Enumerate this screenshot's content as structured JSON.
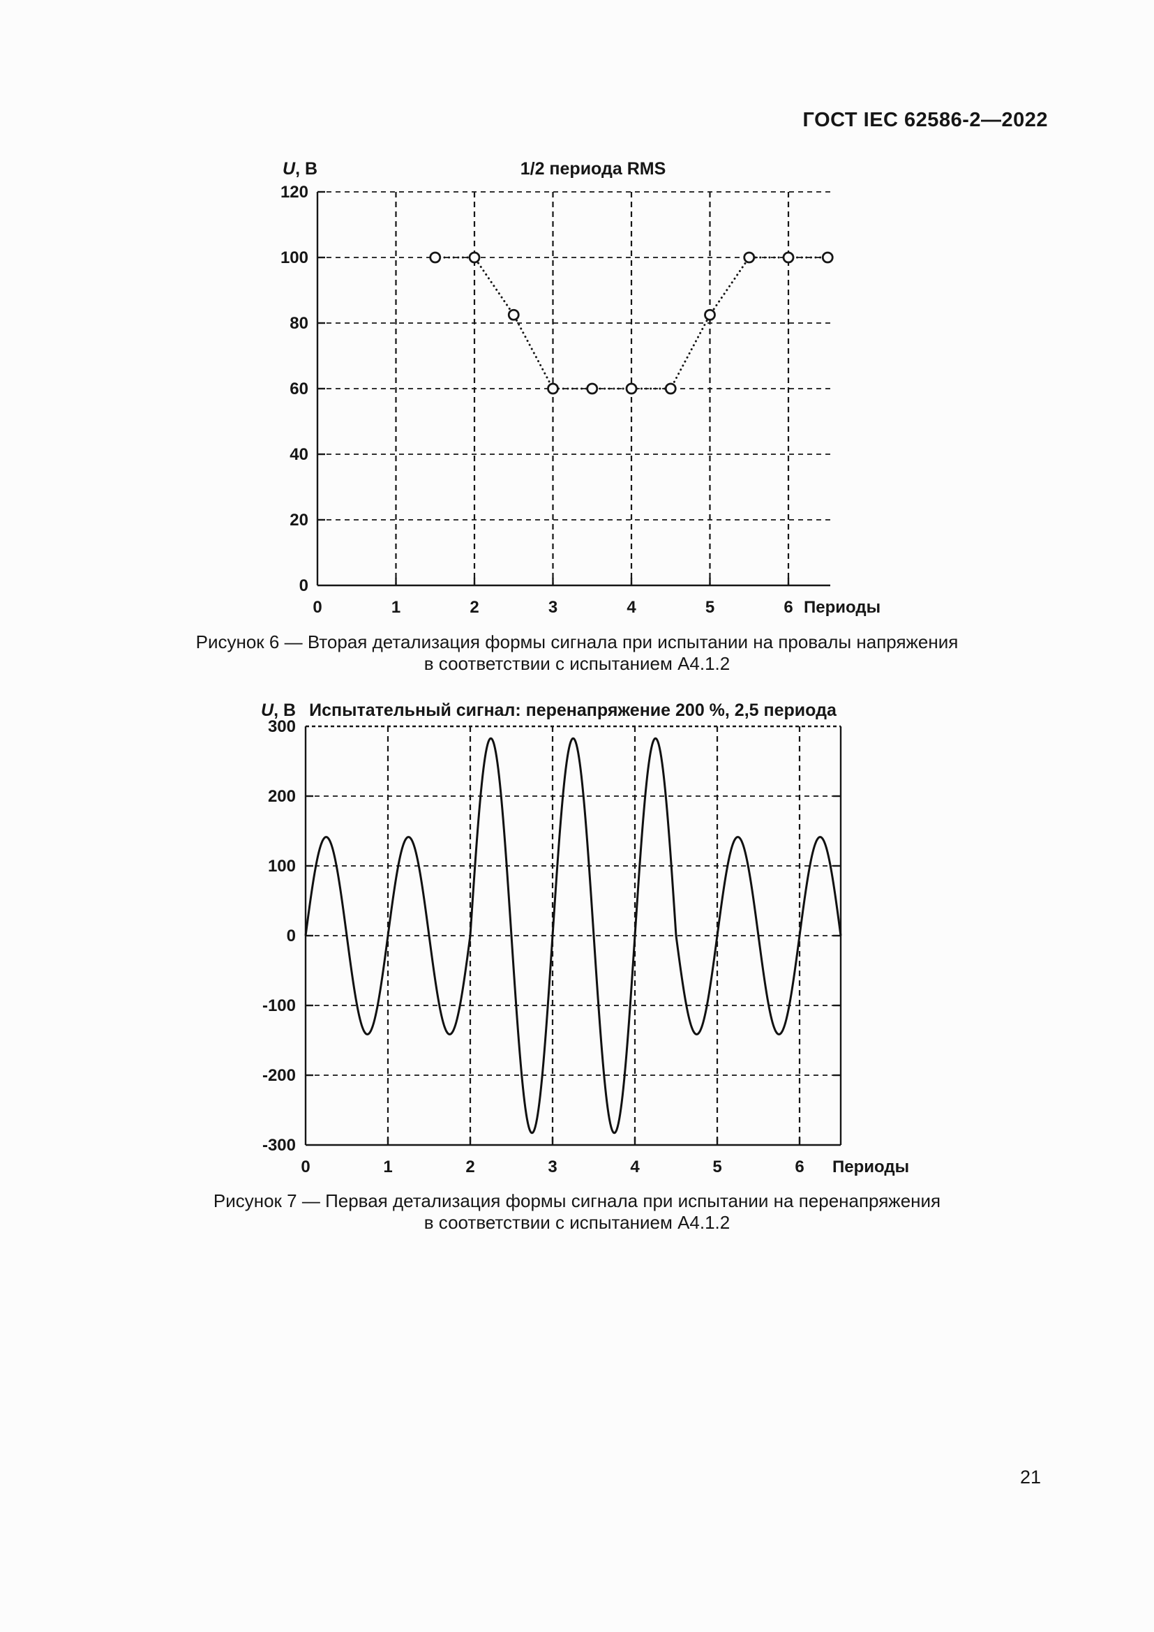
{
  "page": {
    "number": "21"
  },
  "colors": {
    "ink": "#161616",
    "background": "#fcfcfc"
  },
  "header": {
    "title": "ГОСТ IEC 62586-2—2022"
  },
  "figure6": {
    "caption_line1": "Рисунок 6 — Вторая детализация формы сигнала при испытании на провалы напряжения",
    "caption_line2": "в соответствии с испытанием А4.1.2"
  },
  "figure7": {
    "caption_line1": "Рисунок 7 — Первая детализация формы сигнала при испытании на перенапряжения",
    "caption_line2": "в соответствии с испытанием А4.1.2"
  },
  "chart_data": [
    {
      "type": "scatter",
      "title": "1/2 периода RMS",
      "ylabel_var": "U",
      "ylabel_unit": ", В",
      "xlabel": "Периоды",
      "xlim": [
        0,
        6.53
      ],
      "ylim": [
        0,
        120
      ],
      "x_ticks": [
        0,
        1,
        2,
        3,
        4,
        5,
        6
      ],
      "y_ticks": [
        0,
        20,
        40,
        60,
        80,
        100,
        120
      ],
      "grid": true,
      "line_style": "dotted",
      "marker": "open-circle",
      "points": [
        [
          1.5,
          100
        ],
        [
          2,
          100
        ],
        [
          2.5,
          82.5
        ],
        [
          3,
          60
        ],
        [
          3.5,
          60
        ],
        [
          4,
          60
        ],
        [
          4.5,
          60
        ],
        [
          5,
          82.5
        ],
        [
          5.5,
          100
        ],
        [
          6,
          100
        ],
        [
          6.5,
          100
        ]
      ]
    },
    {
      "type": "line",
      "title": "Испытательный сигнал: перенапряжение 200 %, 2,5 периода",
      "ylabel_var": "U",
      "ylabel_unit": ", В",
      "xlabel": "Периоды",
      "xlim": [
        0,
        6.5
      ],
      "ylim": [
        -300,
        300
      ],
      "x_ticks": [
        0,
        1,
        2,
        3,
        4,
        5,
        6
      ],
      "y_ticks": [
        -300,
        -200,
        -100,
        0,
        100,
        200,
        300
      ],
      "grid": true,
      "waveform": {
        "shape": "sine",
        "amplitude_normal_v": 141.4,
        "amplitude_overvoltage_v": 282.8,
        "overvoltage_start_period": 2.0,
        "overvoltage_end_period": 4.5,
        "t_start": 0,
        "t_end": 6.5,
        "sample_step": 0.01
      }
    }
  ]
}
